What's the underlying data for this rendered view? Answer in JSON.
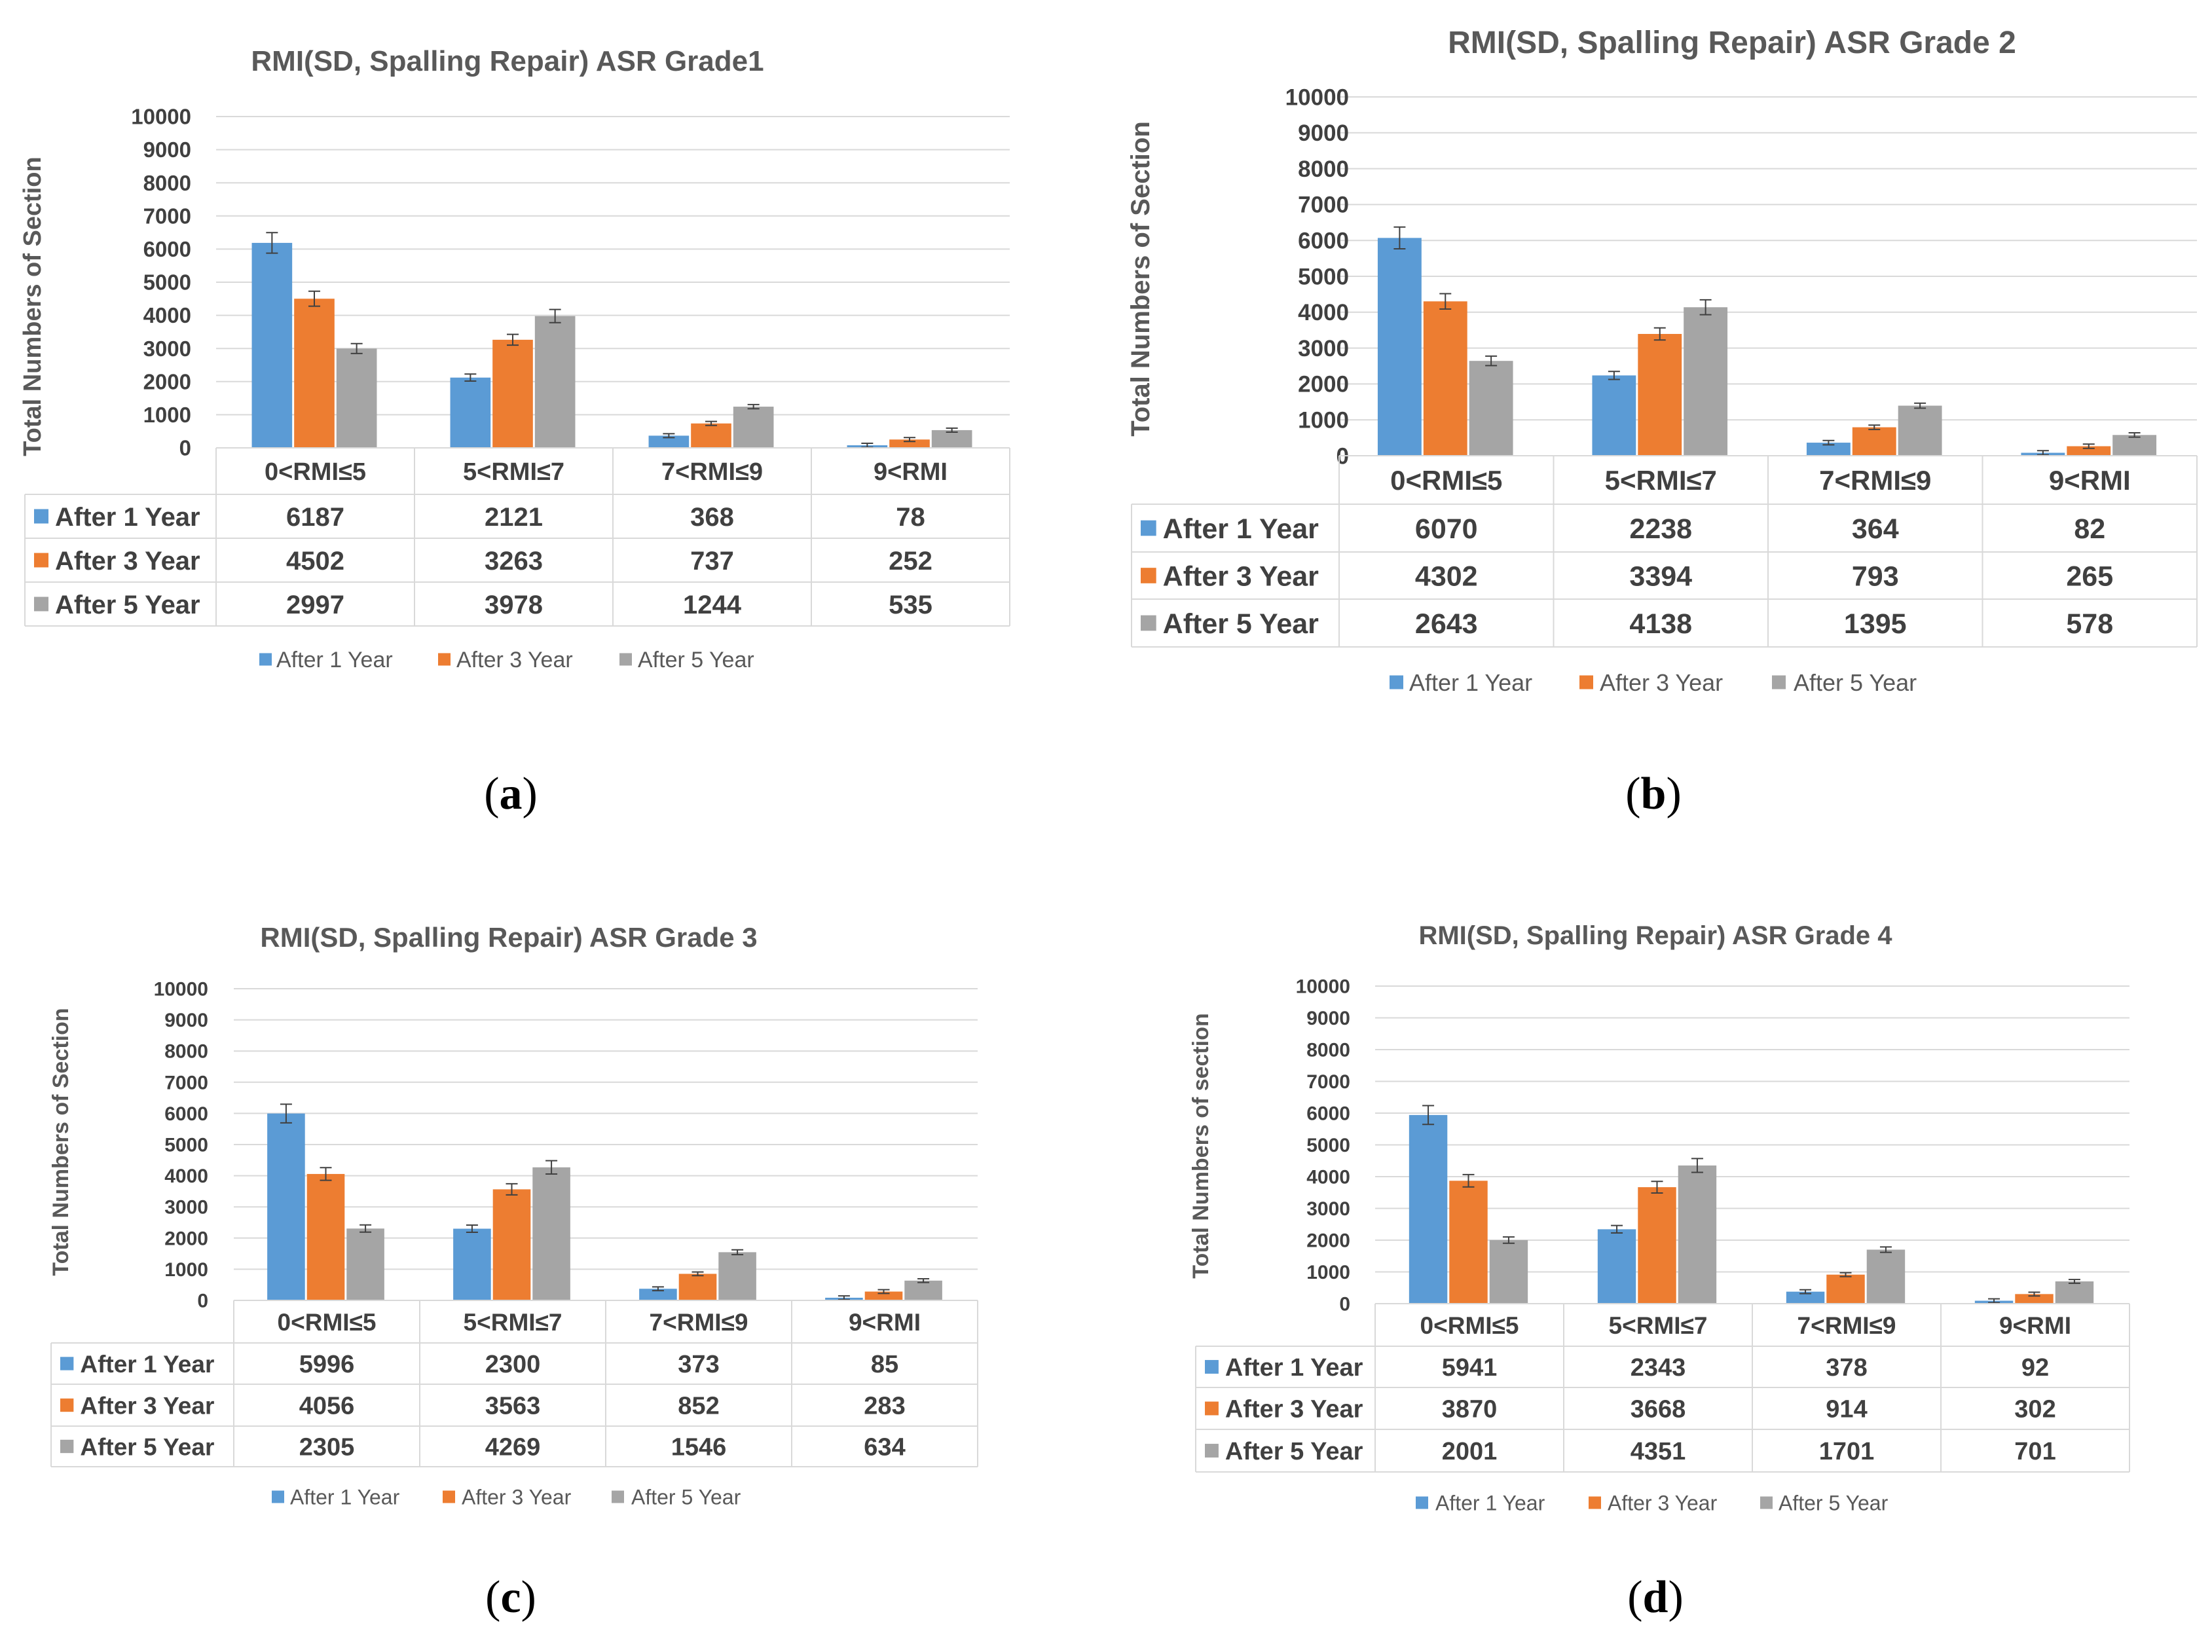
{
  "colors": {
    "s1": "#5b9bd5",
    "s2": "#ed7d31",
    "s3": "#a5a5a5",
    "grid": "#d9d9d9",
    "table": "#d9d9d9"
  },
  "chart_data": [
    {
      "type": "bar",
      "caption": "a",
      "title": "RMI(SD, Spalling Repair) ASR Grade1",
      "ylabel": "Total Numbers of Section",
      "xlabel": "",
      "ylim": [
        0,
        10000
      ],
      "yticks": [
        "0",
        "1000",
        "2000",
        "3000",
        "4000",
        "5000",
        "6000",
        "7000",
        "8000",
        "9000",
        "10000"
      ],
      "categories": [
        "0<RMI≤5",
        "5<RMI≤7",
        "7<RMI≤9",
        "9<RMI"
      ],
      "series": [
        {
          "name": "After 1 Year",
          "values": [
            6187,
            2121,
            368,
            78
          ],
          "labels": [
            "6187",
            "2121",
            "368",
            "78"
          ]
        },
        {
          "name": "After 3 Year",
          "values": [
            4502,
            3263,
            737,
            252
          ],
          "labels": [
            "4502",
            "3263",
            "737",
            "252"
          ]
        },
        {
          "name": "After 5 Year",
          "values": [
            2997,
            3978,
            1244,
            535
          ],
          "labels": [
            "2997",
            "3978",
            "1244",
            "535"
          ]
        }
      ],
      "legend": "bottom",
      "grid": true,
      "error_bars": true
    },
    {
      "type": "bar",
      "caption": "b",
      "title": "RMI(SD, Spalling Repair) ASR Grade 2",
      "ylabel": "Total Numbers of Section",
      "xlabel": "",
      "ylim": [
        0,
        10000
      ],
      "yticks": [
        "0",
        "1000",
        "2000",
        "3000",
        "4000",
        "5000",
        "6000",
        "7000",
        "8000",
        "9000",
        "10000"
      ],
      "categories": [
        "0<RMI≤5",
        "5<RMI≤7",
        "7<RMI≤9",
        "9<RMI"
      ],
      "series": [
        {
          "name": "After 1 Year",
          "values": [
            6070,
            2238,
            364,
            82
          ],
          "labels": [
            "6070",
            "2238",
            "364",
            "82"
          ]
        },
        {
          "name": "After 3 Year",
          "values": [
            4302,
            3394,
            793,
            265
          ],
          "labels": [
            "4302",
            "3394",
            "793",
            "265"
          ]
        },
        {
          "name": "After 5 Year",
          "values": [
            2643,
            4138,
            1395,
            578
          ],
          "labels": [
            "2643",
            "4138",
            "1395",
            "578"
          ]
        }
      ],
      "legend": "bottom",
      "grid": true,
      "error_bars": true
    },
    {
      "type": "bar",
      "caption": "c",
      "title": "RMI(SD, Spalling Repair) ASR Grade 3",
      "ylabel": "Total Numbers of Section",
      "xlabel": "",
      "ylim": [
        0,
        10000
      ],
      "yticks": [
        "0",
        "1000",
        "2000",
        "3000",
        "4000",
        "5000",
        "6000",
        "7000",
        "8000",
        "9000",
        "10000"
      ],
      "categories": [
        "0<RMI≤5",
        "5<RMI≤7",
        "7<RMI≤9",
        "9<RMI"
      ],
      "series": [
        {
          "name": "After 1 Year",
          "values": [
            5996,
            2300,
            373,
            85
          ],
          "labels": [
            "5996",
            "2300",
            "373",
            "85"
          ]
        },
        {
          "name": "After 3 Year",
          "values": [
            4056,
            3563,
            852,
            283
          ],
          "labels": [
            "4056",
            "3563",
            "852",
            "283"
          ]
        },
        {
          "name": "After 5 Year",
          "values": [
            2305,
            4269,
            1546,
            634
          ],
          "labels": [
            "2305",
            "4269",
            "1546",
            "634"
          ]
        }
      ],
      "legend": "bottom",
      "grid": true,
      "error_bars": true
    },
    {
      "type": "bar",
      "caption": "d",
      "title": "RMI(SD, Spalling Repair) ASR Grade 4",
      "ylabel": "Total Numbers of section",
      "xlabel": "",
      "ylim": [
        0,
        10000
      ],
      "yticks": [
        "0",
        "1000",
        "2000",
        "3000",
        "4000",
        "5000",
        "6000",
        "7000",
        "8000",
        "9000",
        "10000"
      ],
      "categories": [
        "0<RMI≤5",
        "5<RMI≤7",
        "7<RMI≤9",
        "9<RMI"
      ],
      "series": [
        {
          "name": "After 1 Year",
          "values": [
            5941,
            2343,
            378,
            92
          ],
          "labels": [
            "5941",
            "2343",
            "378",
            "92"
          ]
        },
        {
          "name": "After 3 Year",
          "values": [
            3870,
            3668,
            914,
            302
          ],
          "labels": [
            "3870",
            "3668",
            "914",
            "302"
          ]
        },
        {
          "name": "After 5 Year",
          "values": [
            2001,
            4351,
            1701,
            701
          ],
          "labels": [
            "2001",
            "4351",
            "1701",
            "701"
          ]
        }
      ],
      "legend": "bottom",
      "grid": true,
      "error_bars": true
    }
  ]
}
